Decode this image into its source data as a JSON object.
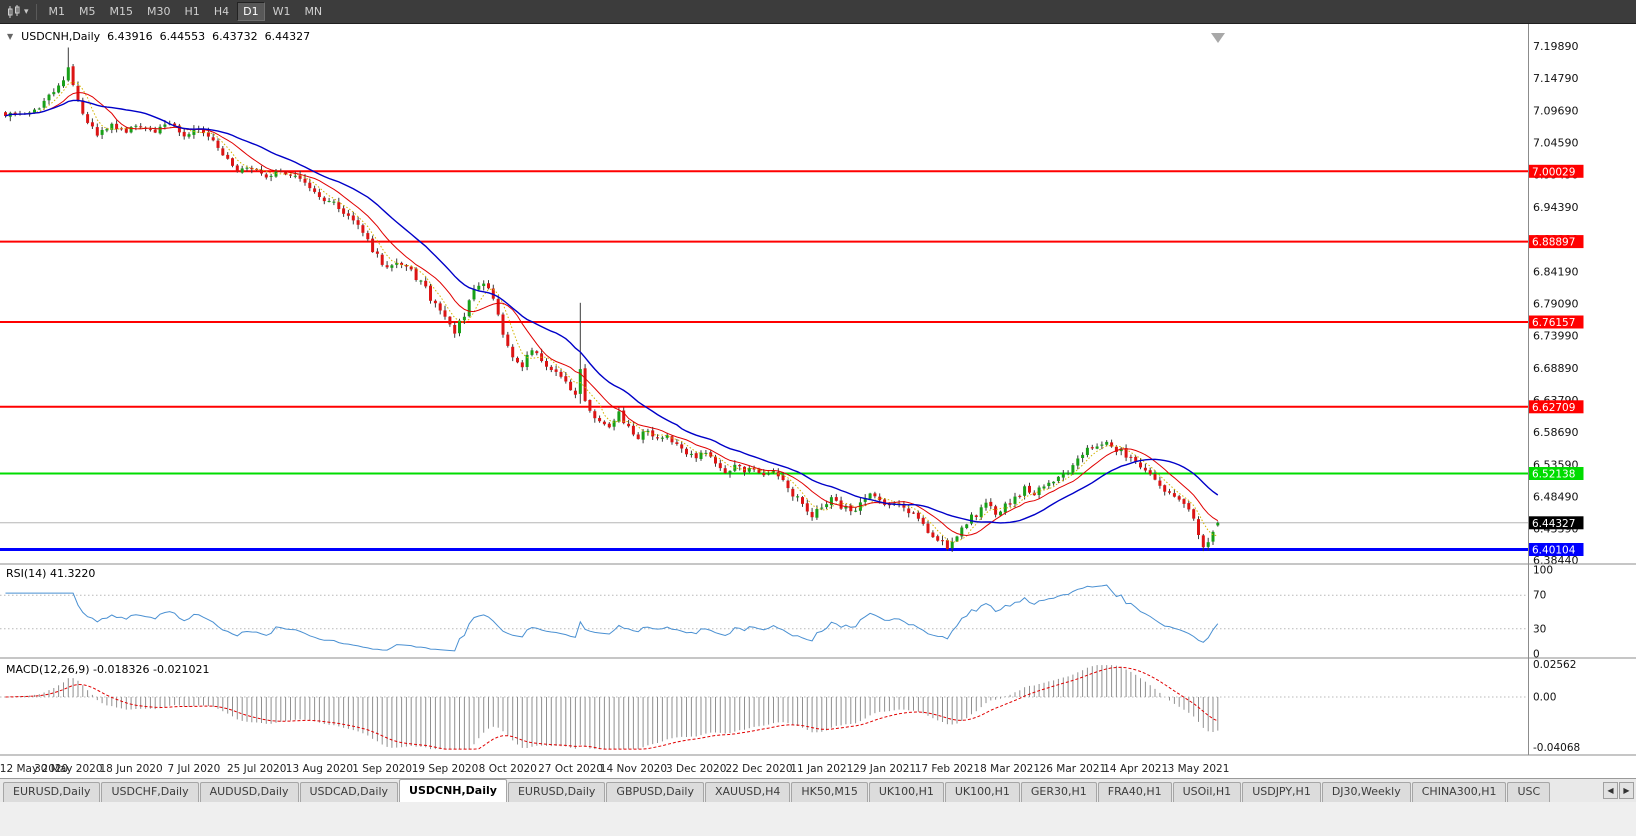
{
  "toolbar": {
    "dropdown_glyph": "▾",
    "timeframes": [
      "M1",
      "M5",
      "M15",
      "M30",
      "H1",
      "H4",
      "D1",
      "W1",
      "MN"
    ],
    "active_timeframe": "D1"
  },
  "quote_header": {
    "collapse_icon": "▼",
    "symbol": "USDCNH,Daily",
    "open": "6.43916",
    "high": "6.44553",
    "low": "6.43732",
    "close": "6.44327"
  },
  "price_axis": {
    "ticks": [
      "7.19890",
      "7.14790",
      "7.09690",
      "7.04590",
      "6.99490",
      "6.94390",
      "6.89290",
      "6.84190",
      "6.79090",
      "6.73990",
      "6.68890",
      "6.63790",
      "6.58690",
      "6.53590",
      "6.48490",
      "6.43390",
      "6.38440"
    ],
    "current_price_badge": {
      "text": "6.44327",
      "bg": "#000000",
      "fg": "#ffffff"
    }
  },
  "indicators": {
    "rsi": {
      "title": "RSI(14) 41.3220",
      "axis_ticks": [
        "100",
        "70",
        "30",
        "0"
      ],
      "levels": [
        70,
        30
      ],
      "line_color": "#4a90d2"
    },
    "macd": {
      "title": "MACD(12,26,9) -0.018326 -0.021021",
      "axis_ticks": [
        "0.02562",
        "0.00",
        "-0.04068"
      ],
      "histogram_color": "#909090",
      "signal_color": "#e00000"
    }
  },
  "time_axis": {
    "labels": [
      "12 May 2020",
      "30 May 2020",
      "18 Jun 2020",
      "7 Jul 2020",
      "25 Jul 2020",
      "13 Aug 2020",
      "1 Sep 2020",
      "19 Sep 2020",
      "8 Oct 2020",
      "27 Oct 2020",
      "14 Nov 2020",
      "3 Dec 2020",
      "22 Dec 2020",
      "11 Jan 2021",
      "29 Jan 2021",
      "17 Feb 2021",
      "8 Mar 2021",
      "26 Mar 2021",
      "14 Apr 2021",
      "3 May 2021"
    ]
  },
  "tab_bar": {
    "tabs": [
      "EURUSD,Daily",
      "USDCHF,Daily",
      "AUDUSD,Daily",
      "USDCAD,Daily",
      "USDCNH,Daily",
      "EURUSD,Daily",
      "GBPUSD,Daily",
      "XAUUSD,H4",
      "HK50,M15",
      "UK100,H1",
      "UK100,H1",
      "GER30,H1",
      "FRA40,H1",
      "USOil,H1",
      "USDJPY,H1",
      "DJ30,Weekly",
      "CHINA300,H1",
      "USC"
    ],
    "active_index": 4,
    "active_tab": "USDCNH,Daily",
    "scroll_left_icon": "◀",
    "scroll_right_icon": "▶"
  },
  "chart_data": {
    "type": "candlestick",
    "symbol": "USDCNH",
    "timeframe": "Daily",
    "candles_count": 252,
    "x_range_dates": [
      "12 May 2020",
      "14 May 2021"
    ],
    "y_axis_range": [
      6.3796,
      7.2211
    ],
    "bull_color": "#18a018",
    "bear_color": "#dc1414",
    "wick_color": "#3a3a3a",
    "last_candle": {
      "open": 6.43916,
      "high": 6.44553,
      "low": 6.43732,
      "close": 6.44327
    },
    "close_keyframes": [
      [
        0,
        7.085
      ],
      [
        4,
        7.095
      ],
      [
        8,
        7.108
      ],
      [
        11,
        7.135
      ],
      [
        13,
        7.165
      ],
      [
        15,
        7.115
      ],
      [
        17,
        7.075
      ],
      [
        19,
        7.06
      ],
      [
        22,
        7.075
      ],
      [
        25,
        7.065
      ],
      [
        28,
        7.075
      ],
      [
        31,
        7.066
      ],
      [
        34,
        7.074
      ],
      [
        37,
        7.06
      ],
      [
        40,
        7.066
      ],
      [
        43,
        7.045
      ],
      [
        46,
        7.015
      ],
      [
        48,
        6.998
      ],
      [
        51,
        7.006
      ],
      [
        54,
        6.994
      ],
      [
        57,
        7.002
      ],
      [
        60,
        6.988
      ],
      [
        63,
        6.974
      ],
      [
        66,
        6.958
      ],
      [
        69,
        6.945
      ],
      [
        72,
        6.925
      ],
      [
        74,
        6.9
      ],
      [
        76,
        6.875
      ],
      [
        78,
        6.855
      ],
      [
        80,
        6.846
      ],
      [
        82,
        6.856
      ],
      [
        84,
        6.84
      ],
      [
        86,
        6.825
      ],
      [
        88,
        6.8
      ],
      [
        90,
        6.775
      ],
      [
        93,
        6.745
      ],
      [
        95,
        6.775
      ],
      [
        97,
        6.815
      ],
      [
        99,
        6.825
      ],
      [
        101,
        6.8
      ],
      [
        103,
        6.745
      ],
      [
        105,
        6.71
      ],
      [
        107,
        6.695
      ],
      [
        109,
        6.716
      ],
      [
        111,
        6.7
      ],
      [
        113,
        6.686
      ],
      [
        115,
        6.675
      ],
      [
        117,
        6.658
      ],
      [
        118,
        6.645
      ],
      [
        119,
        6.685
      ],
      [
        120,
        6.635
      ],
      [
        121,
        6.62
      ],
      [
        123,
        6.605
      ],
      [
        125,
        6.6
      ],
      [
        127,
        6.615
      ],
      [
        129,
        6.592
      ],
      [
        131,
        6.58
      ],
      [
        133,
        6.592
      ],
      [
        135,
        6.576
      ],
      [
        137,
        6.582
      ],
      [
        139,
        6.566
      ],
      [
        141,
        6.556
      ],
      [
        143,
        6.546
      ],
      [
        145,
        6.556
      ],
      [
        147,
        6.536
      ],
      [
        149,
        6.526
      ],
      [
        151,
        6.536
      ],
      [
        153,
        6.521
      ],
      [
        155,
        6.531
      ],
      [
        157,
        6.516
      ],
      [
        159,
        6.526
      ],
      [
        161,
        6.51
      ],
      [
        163,
        6.49
      ],
      [
        165,
        6.47
      ],
      [
        167,
        6.456
      ],
      [
        169,
        6.466
      ],
      [
        171,
        6.48
      ],
      [
        173,
        6.47
      ],
      [
        175,
        6.46
      ],
      [
        177,
        6.475
      ],
      [
        179,
        6.486
      ],
      [
        181,
        6.476
      ],
      [
        183,
        6.466
      ],
      [
        185,
        6.476
      ],
      [
        187,
        6.461
      ],
      [
        189,
        6.446
      ],
      [
        191,
        6.431
      ],
      [
        193,
        6.416
      ],
      [
        195,
        6.406
      ],
      [
        197,
        6.426
      ],
      [
        199,
        6.446
      ],
      [
        201,
        6.456
      ],
      [
        203,
        6.471
      ],
      [
        205,
        6.461
      ],
      [
        207,
        6.471
      ],
      [
        209,
        6.481
      ],
      [
        211,
        6.496
      ],
      [
        213,
        6.491
      ],
      [
        215,
        6.501
      ],
      [
        217,
        6.511
      ],
      [
        219,
        6.516
      ],
      [
        221,
        6.531
      ],
      [
        223,
        6.551
      ],
      [
        225,
        6.566
      ],
      [
        227,
        6.571
      ],
      [
        229,
        6.566
      ],
      [
        231,
        6.556
      ],
      [
        233,
        6.546
      ],
      [
        235,
        6.531
      ],
      [
        237,
        6.516
      ],
      [
        239,
        6.501
      ],
      [
        241,
        6.491
      ],
      [
        243,
        6.481
      ],
      [
        245,
        6.466
      ],
      [
        246,
        6.448
      ],
      [
        247,
        6.425
      ],
      [
        248,
        6.404
      ],
      [
        249,
        6.412
      ],
      [
        250,
        6.428
      ],
      [
        251,
        6.44327
      ]
    ],
    "spike_overrides": [
      {
        "i": 13,
        "high": 7.1965
      },
      {
        "i": 119,
        "high": 6.792,
        "low": 6.632
      },
      {
        "i": 195,
        "low": 6.399
      },
      {
        "i": 248,
        "low": 6.3985
      }
    ],
    "hlines": [
      {
        "value": 7.00029,
        "label": "7.00029",
        "color": "#ff0000",
        "width": 2
      },
      {
        "value": 6.88897,
        "label": "6.88897",
        "color": "#ff0000",
        "width": 2
      },
      {
        "value": 6.76157,
        "label": "6.76157",
        "color": "#ff0000",
        "width": 2
      },
      {
        "value": 6.62709,
        "label": "6.62709",
        "color": "#ff0000",
        "width": 2
      },
      {
        "value": 6.52138,
        "label": "6.52138",
        "color": "#00dc00",
        "width": 2
      },
      {
        "value": 6.40104,
        "label": "6.40104",
        "color": "#0000ff",
        "width": 3
      }
    ],
    "moving_averages": [
      {
        "period": 5,
        "color": "#d2b400",
        "width": 1,
        "style": "dot"
      },
      {
        "period": 10,
        "color": "#e00000",
        "width": 1,
        "style": "solid"
      },
      {
        "period": 21,
        "color": "#0000c8",
        "width": 1.4,
        "style": "solid"
      }
    ],
    "rsi_period": 14,
    "rsi_display": 41.322,
    "macd_params": [
      12,
      26,
      9
    ],
    "macd_display": {
      "macd": -0.018326,
      "signal": -0.021021
    }
  }
}
